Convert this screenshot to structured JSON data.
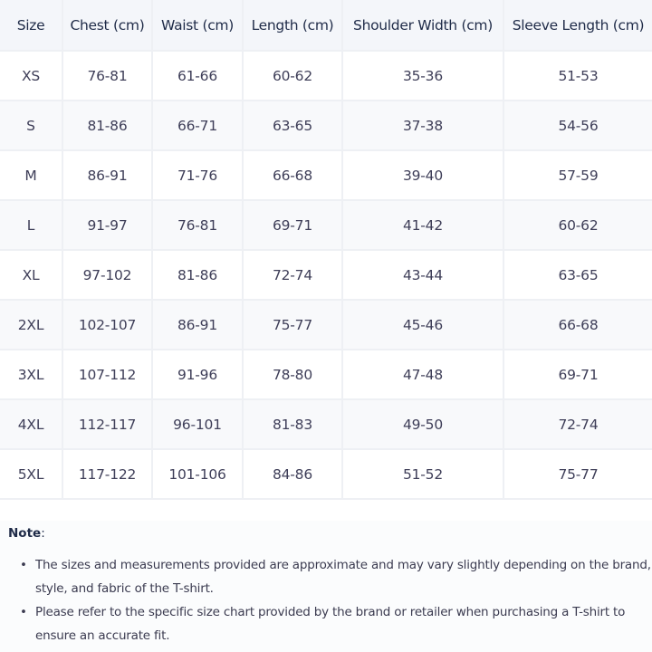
{
  "table": {
    "headers": [
      "Size",
      "Chest (cm)",
      "Waist (cm)",
      "Length (cm)",
      "Shoulder Width (cm)",
      "Sleeve Length (cm)"
    ],
    "rows": [
      [
        "XS",
        "76-81",
        "61-66",
        "60-62",
        "35-36",
        "51-53"
      ],
      [
        "S",
        "81-86",
        "66-71",
        "63-65",
        "37-38",
        "54-56"
      ],
      [
        "M",
        "86-91",
        "71-76",
        "66-68",
        "39-40",
        "57-59"
      ],
      [
        "L",
        "91-97",
        "76-81",
        "69-71",
        "41-42",
        "60-62"
      ],
      [
        "XL",
        "97-102",
        "81-86",
        "72-74",
        "43-44",
        "63-65"
      ],
      [
        "2XL",
        "102-107",
        "86-91",
        "75-77",
        "45-46",
        "66-68"
      ],
      [
        "3XL",
        "107-112",
        "91-96",
        "78-80",
        "47-48",
        "69-71"
      ],
      [
        "4XL",
        "112-117",
        "96-101",
        "81-83",
        "49-50",
        "72-74"
      ],
      [
        "5XL",
        "117-122",
        "101-106",
        "84-86",
        "51-52",
        "75-77"
      ]
    ]
  },
  "note": {
    "title": "Note",
    "colon": ":",
    "bullets": [
      "The sizes and measurements provided are approximate and may vary slightly depending on the brand, style, and fabric of the T-shirt.",
      "Please refer to the specific size chart provided by the brand or retailer when purchasing a T-shirt to ensure an accurate fit."
    ]
  }
}
